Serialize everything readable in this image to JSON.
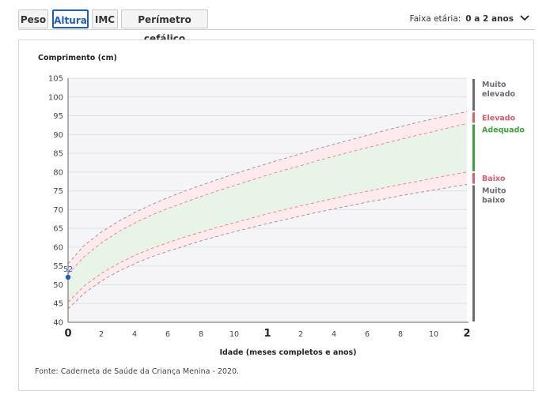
{
  "tabs": [
    "Peso",
    "Altura",
    "IMC",
    "Perímetro cefálico"
  ],
  "active_tab": "Altura",
  "age_range": {
    "label": "Faixa etária:",
    "value": "0 a 2 anos"
  },
  "icons": {
    "dropdown": "chevron-down-icon"
  },
  "colors": {
    "accent": "#1c5cc8",
    "band_green": "#e8f5e6",
    "band_pink": "#fdeaec",
    "point": "#1c5cc8",
    "muito": "#6b6b75",
    "elevado": "#e8596a",
    "adequado": "#3aa53a"
  },
  "chart_data": {
    "type": "line",
    "ylabel": "Comprimento (cm)",
    "xlabel": "Idade (meses completos e anos)",
    "source": "Fonte: Caderneta de Saúde da Criança Menina - 2020.",
    "ylim": [
      40,
      105
    ],
    "yticks": [
      40,
      45,
      50,
      55,
      60,
      65,
      70,
      75,
      80,
      85,
      90,
      95,
      100,
      105
    ],
    "xlim": [
      0,
      24
    ],
    "xticks": [
      {
        "m": 0,
        "label": "0",
        "major": true
      },
      {
        "m": 2,
        "label": "2",
        "major": false
      },
      {
        "m": 4,
        "label": "4",
        "major": false
      },
      {
        "m": 6,
        "label": "6",
        "major": false
      },
      {
        "m": 8,
        "label": "8",
        "major": false
      },
      {
        "m": 10,
        "label": "10",
        "major": false
      },
      {
        "m": 12,
        "label": "1",
        "major": true
      },
      {
        "m": 14,
        "label": "2",
        "major": false
      },
      {
        "m": 16,
        "label": "4",
        "major": false
      },
      {
        "m": 18,
        "label": "6",
        "major": false
      },
      {
        "m": 20,
        "label": "8",
        "major": false
      },
      {
        "m": 22,
        "label": "10",
        "major": false
      },
      {
        "m": 24,
        "label": "2",
        "major": true
      }
    ],
    "x": [
      0,
      1,
      2,
      3,
      4,
      5,
      6,
      7,
      8,
      9,
      10,
      11,
      12,
      13,
      14,
      15,
      16,
      17,
      18,
      19,
      20,
      21,
      22,
      23,
      24
    ],
    "series": [
      {
        "values": [
          43.6,
          47.8,
          51.0,
          53.5,
          55.6,
          57.4,
          58.9,
          60.3,
          61.7,
          62.9,
          64.1,
          65.2,
          66.3,
          67.3,
          68.3,
          69.3,
          70.2,
          71.1,
          72.0,
          72.8,
          73.7,
          74.5,
          75.2,
          76.0,
          76.7
        ]
      },
      {
        "values": [
          45.4,
          49.8,
          53.0,
          55.6,
          57.8,
          59.6,
          61.2,
          62.7,
          64.0,
          65.3,
          66.5,
          67.7,
          68.9,
          70.0,
          71.0,
          72.0,
          73.0,
          74.0,
          74.9,
          75.8,
          76.7,
          77.5,
          78.4,
          79.2,
          80.0
        ]
      },
      {
        "values": [
          52.9,
          57.6,
          61.1,
          64.0,
          66.4,
          68.5,
          70.3,
          71.9,
          73.5,
          75.0,
          76.4,
          77.8,
          79.2,
          80.5,
          81.7,
          83.0,
          84.2,
          85.4,
          86.5,
          87.6,
          88.7,
          89.8,
          90.8,
          91.9,
          92.9
        ]
      },
      {
        "values": [
          55.6,
          60.6,
          64.0,
          66.8,
          69.2,
          71.3,
          73.2,
          74.9,
          76.5,
          78.0,
          79.5,
          80.9,
          82.3,
          83.6,
          84.9,
          86.2,
          87.4,
          88.6,
          89.8,
          91.0,
          92.1,
          93.2,
          94.2,
          95.2,
          96.1
        ]
      }
    ],
    "point": {
      "x": 0,
      "y": 52,
      "label": "52"
    },
    "zones": [
      {
        "label": "Muito elevado",
        "lines": [
          "Muito",
          "elevado"
        ],
        "from": 96.1,
        "to": 105,
        "color": "#6b6b75"
      },
      {
        "label": "Elevado",
        "lines": [
          "Elevado"
        ],
        "from": 92.9,
        "to": 96.1,
        "color": "#e8596a"
      },
      {
        "label": "Adequado",
        "lines": [
          "Adequado"
        ],
        "from": 80.0,
        "to": 92.9,
        "color": "#3aa53a"
      },
      {
        "label": "Baixo",
        "lines": [
          "Baixo"
        ],
        "from": 76.7,
        "to": 80.0,
        "color": "#e8596a"
      },
      {
        "label": "Muito baixo",
        "lines": [
          "Muito",
          "baixo"
        ],
        "from": 40,
        "to": 76.7,
        "color": "#6b6b75"
      }
    ]
  }
}
